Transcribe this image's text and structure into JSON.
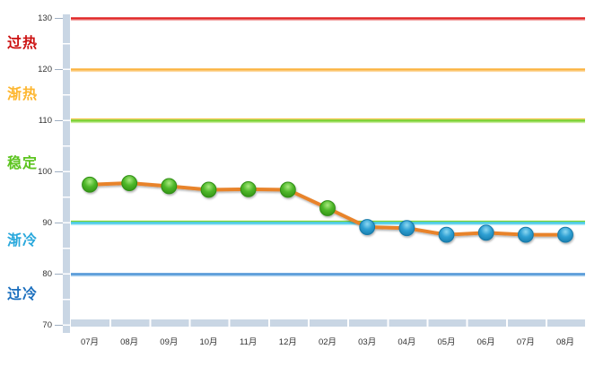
{
  "chart_data": {
    "type": "line",
    "x_labels": [
      "07月",
      "08月",
      "09月",
      "10月",
      "11月",
      "12月",
      "02月",
      "03月",
      "04月",
      "05月",
      "06月",
      "07月",
      "08月"
    ],
    "y_ticks": [
      130,
      120,
      110,
      100,
      90,
      80,
      70
    ],
    "ylim": [
      70,
      130
    ],
    "grid": "off",
    "legend": "none",
    "series": [
      {
        "values": [
          97.5,
          97.8,
          97.2,
          96.5,
          96.6,
          96.5,
          92.9,
          89.2,
          89.0,
          87.7,
          88.1,
          87.7,
          87.7
        ],
        "marker_colors": [
          "green",
          "green",
          "green",
          "green",
          "green",
          "green",
          "green",
          "blue",
          "blue",
          "blue",
          "blue",
          "blue",
          "blue"
        ],
        "line_color": "#E8832C"
      }
    ],
    "zones": [
      {
        "label": "过热",
        "color": "#CC1111",
        "range": [
          120,
          130
        ],
        "label_at": 125.8
      },
      {
        "label": "渐热",
        "color": "#FDB62F",
        "range": [
          110,
          120
        ],
        "label_at": 115.8
      },
      {
        "label": "稳定",
        "color": "#5CC41F",
        "range": [
          90,
          110
        ],
        "label_at": 102.3
      },
      {
        "label": "渐冷",
        "color": "#29A8DC",
        "range": [
          80,
          90
        ],
        "label_at": 87.2
      },
      {
        "label": "过冷",
        "color": "#1B6FBE",
        "range": [
          70,
          80
        ],
        "label_at": 76.8
      }
    ],
    "boundaries": [
      {
        "value": 130,
        "color": "#E02525",
        "under": "#F2A9A9"
      },
      {
        "value": 120,
        "color": "#FBB441",
        "under": "#FDD9A0"
      },
      {
        "value": 110,
        "color": "#79D12F",
        "under": "#C9EC9C",
        "over": "#F3C94E"
      },
      {
        "value": 90,
        "color": "#41C9E8",
        "under": "#B9EAF6",
        "over": "#79D12F"
      },
      {
        "value": 80,
        "color": "#4D94D6",
        "under": "#ABD0EE"
      }
    ],
    "markers": {
      "green": {
        "stroke": "#2F8E12",
        "stops": [
          "#A9E97F",
          "#4FB82A",
          "#2F8E12"
        ]
      },
      "blue": {
        "stroke": "#1679A8",
        "stops": [
          "#8ED9F2",
          "#2FA0D3",
          "#1679A8"
        ]
      }
    },
    "axis": {
      "band_color": "#C9D6E4",
      "tick_color": "#9FAFC2",
      "label_color": "#333333"
    }
  }
}
